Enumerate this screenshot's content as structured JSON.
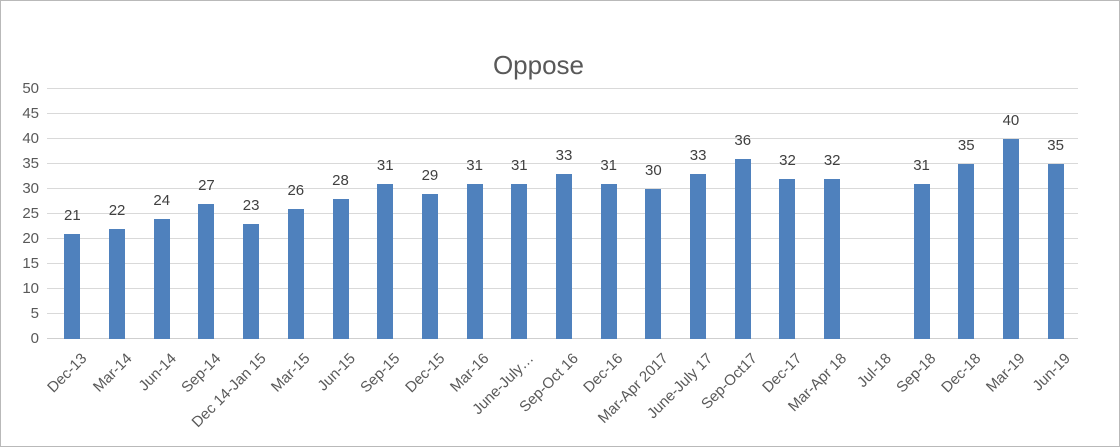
{
  "window": {
    "background": "#ffffff",
    "border_color": "#b9b9b9"
  },
  "chart_data": {
    "type": "bar",
    "title": "Oppose",
    "categories": [
      "Dec-13",
      "Mar-14",
      "Jun-14",
      "Sep-14",
      "Dec 14-Jan 15",
      "Mar-15",
      "Jun-15",
      "Sep-15",
      "Dec-15",
      "Mar-16",
      "June-July…",
      "Sep-Oct 16",
      "Dec-16",
      "Mar-Apr 2017",
      "June-July 17",
      "Sep-Oct17",
      "Dec-17",
      "Mar-Apr 18",
      "Jul-18",
      "Sep-18",
      "Dec-18",
      "Mar-19",
      "Jun-19"
    ],
    "values": [
      21,
      22,
      24,
      27,
      23,
      26,
      28,
      31,
      29,
      31,
      31,
      33,
      31,
      30,
      33,
      36,
      32,
      32,
      null,
      31,
      35,
      40,
      35
    ],
    "xlabel": "",
    "ylabel": "",
    "ylim": [
      0,
      50
    ],
    "ytick_step": 5,
    "grid": true,
    "legend": "none",
    "bar_color": "#4F81BD",
    "grid_color": "#d9d9d9",
    "baseline_color": "#cfcfcf",
    "axis_text_color": "#595959",
    "value_label_color": "#404040",
    "title_color": "#595959"
  }
}
